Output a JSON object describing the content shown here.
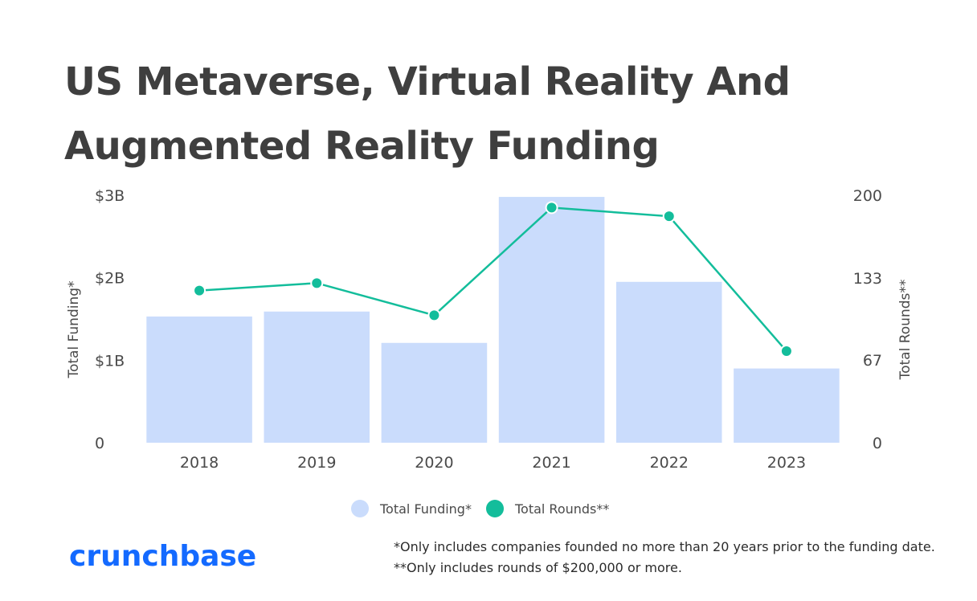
{
  "title_lines": [
    "US Metaverse, Virtual Reality And",
    "Augmented Reality Funding"
  ],
  "legend": {
    "funding_label": "Total Funding*",
    "rounds_label": "Total Rounds**"
  },
  "logo": {
    "text": "crunchbase",
    "color": "#146aff"
  },
  "footnotes": [
    "*Only includes companies founded no more than 20 years prior to the funding date.",
    "**Only includes rounds of $200,000 or more."
  ],
  "colors": {
    "bar": "#cadcfc",
    "line": "#13bd9b",
    "text": "#4a4a4a",
    "title": "#3f3f3f"
  },
  "chart_data": {
    "type": "bar",
    "categories": [
      "2018",
      "2019",
      "2020",
      "2021",
      "2022",
      "2023"
    ],
    "series": [
      {
        "name": "Total Funding*",
        "type": "bar",
        "axis": "left",
        "unit": "USD billions",
        "values": [
          1.53,
          1.59,
          1.21,
          2.98,
          1.95,
          0.9
        ]
      },
      {
        "name": "Total Rounds**",
        "type": "line",
        "axis": "right",
        "values": [
          123,
          129,
          103,
          190,
          183,
          74
        ]
      }
    ],
    "y_left": {
      "label": "Total Funding*",
      "range": [
        0,
        3
      ],
      "ticks": [
        0,
        1,
        2,
        3
      ],
      "tick_labels": [
        "0",
        "$1B",
        "$2B",
        "$3B"
      ]
    },
    "y_right": {
      "label": "Total Rounds**",
      "range": [
        0,
        200
      ],
      "ticks": [
        0,
        67,
        133,
        200
      ],
      "tick_labels": [
        "0",
        "67",
        "133",
        "200"
      ]
    },
    "grid": false,
    "legend_position": "bottom-center"
  }
}
